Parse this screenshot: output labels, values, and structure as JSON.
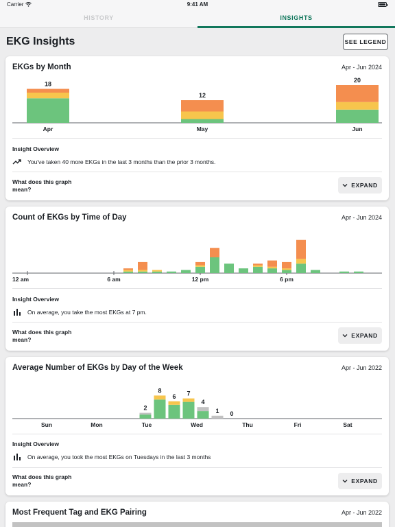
{
  "status_bar": {
    "carrier": "Carrier",
    "time": "9:41 AM"
  },
  "tabs": [
    {
      "label": "HISTORY",
      "active": false
    },
    {
      "label": "INSIGHTS",
      "active": true
    }
  ],
  "page": {
    "title": "EKG Insights",
    "legend_button": "SEE LEGEND"
  },
  "colors": {
    "normal": "#6cc47d",
    "borderline": "#f7c54d",
    "abnormal": "#f48e4f",
    "unclassified": "#c2c2c2",
    "accent": "#11775c"
  },
  "cards": [
    {
      "title": "EKGs by Month",
      "range": "Apr - Jun 2024",
      "insight_heading": "Insight Overview",
      "insight_icon": "trend-up-icon",
      "insight_text": "You've taken 40 more EKGs in the last 3 months than the prior 3 months.",
      "question": "What does this graph mean?",
      "expand_label": "EXPAND"
    },
    {
      "title": "Count of EKGs by Time of Day",
      "range": "Apr - Jun 2024",
      "insight_heading": "Insight Overview",
      "insight_icon": "bar-chart-icon",
      "insight_text": "On average, you take the most EKGs at 7 pm.",
      "question": "What does this graph mean?",
      "expand_label": "EXPAND"
    },
    {
      "title": "Average Number of EKGs by Day of the Week",
      "range": "Apr - Jun 2022",
      "insight_heading": "Insight Overview",
      "insight_icon": "bar-chart-icon",
      "insight_text": "On average, you took the most EKGs on Tuesdays in the last 3 months",
      "question": "What does this graph mean?",
      "expand_label": "EXPAND"
    },
    {
      "title": "Most Frequent Tag and EKG Pairing",
      "range": "Apr - Jun 2022"
    }
  ],
  "chart_data": [
    {
      "type": "bar",
      "stacked": true,
      "categories": [
        "Apr",
        "May",
        "Jun"
      ],
      "totals": [
        "18",
        "12",
        "20"
      ],
      "series": [
        {
          "color": "#6cc47d",
          "values": [
            13,
            2,
            7
          ]
        },
        {
          "color": "#f7c54d",
          "values": [
            3,
            4,
            4
          ]
        },
        {
          "color": "#f48e4f",
          "values": [
            2,
            6,
            9
          ]
        }
      ]
    },
    {
      "type": "bar",
      "stacked": true,
      "x_ticks": [
        "12 am",
        "6 am",
        "12 pm",
        "6 pm"
      ],
      "x_tick_hours": [
        0,
        6,
        12,
        18
      ],
      "hours": [
        7,
        8,
        9,
        10,
        11,
        12,
        13,
        14,
        15,
        16,
        17,
        18,
        19,
        20,
        22,
        23
      ],
      "series": [
        {
          "color": "#6cc47d",
          "values": [
            1,
            1,
            1,
            1,
            2,
            4,
            10,
            6,
            3,
            4,
            3,
            2,
            6,
            2,
            1,
            1
          ]
        },
        {
          "color": "#f7c54d",
          "values": [
            1,
            1,
            1,
            0,
            0,
            1,
            0,
            0,
            0,
            1,
            1,
            1,
            3,
            0,
            0,
            0
          ]
        },
        {
          "color": "#f48e4f",
          "values": [
            1,
            5,
            0,
            0,
            0,
            2,
            6,
            0,
            0,
            1,
            4,
            4,
            12,
            0,
            0,
            0
          ]
        }
      ]
    },
    {
      "type": "bar",
      "stacked": true,
      "days": [
        "Sun",
        "Mon",
        "Tue",
        "Wed",
        "Thu",
        "Fri",
        "Sat"
      ],
      "bars": [
        {
          "day": 2,
          "offset": 0,
          "label": "2",
          "values": {
            "normal": 1.4,
            "borderline": 0,
            "unclassified": 0.6
          }
        },
        {
          "day": 2,
          "offset": 1,
          "label": "8",
          "values": {
            "normal": 6.6,
            "borderline": 1.4,
            "unclassified": 0
          }
        },
        {
          "day": 2,
          "offset": 2,
          "label": "6",
          "values": {
            "normal": 4.8,
            "borderline": 1.2,
            "unclassified": 0
          }
        },
        {
          "day": 3,
          "offset": 0,
          "label": "7",
          "values": {
            "normal": 5.8,
            "borderline": 1.2,
            "unclassified": 0
          }
        },
        {
          "day": 3,
          "offset": 1,
          "label": "4",
          "values": {
            "normal": 2.6,
            "borderline": 0,
            "unclassified": 1.4
          }
        },
        {
          "day": 3,
          "offset": 2,
          "label": "1",
          "values": {
            "normal": 0,
            "borderline": 0,
            "unclassified": 1
          }
        },
        {
          "day": 3,
          "offset": 3,
          "label": "0",
          "values": {
            "normal": 0,
            "borderline": 0,
            "unclassified": 0
          }
        }
      ]
    }
  ]
}
